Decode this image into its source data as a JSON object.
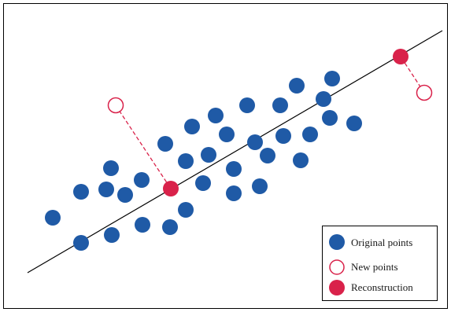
{
  "colors": {
    "original": "#1f5aa6",
    "reconstruction": "#d9224a",
    "line": "#000000",
    "frame": "#000000",
    "legend_border": "#000000"
  },
  "legend": {
    "original_label": "Original points",
    "new_label": "New points",
    "reconstruction_label": "Reconstruction"
  },
  "chart_data": {
    "type": "scatter",
    "original_points": [
      [
        67,
        277
      ],
      [
        103,
        244
      ],
      [
        135,
        241
      ],
      [
        141,
        214
      ],
      [
        159,
        248
      ],
      [
        180,
        229
      ],
      [
        103,
        309
      ],
      [
        142,
        299
      ],
      [
        181,
        286
      ],
      [
        216,
        289
      ],
      [
        236,
        267
      ],
      [
        210,
        183
      ],
      [
        236,
        205
      ],
      [
        244,
        161
      ],
      [
        265,
        197
      ],
      [
        274,
        147
      ],
      [
        288,
        171
      ],
      [
        258,
        233
      ],
      [
        297,
        215
      ],
      [
        297,
        246
      ],
      [
        314,
        134
      ],
      [
        324,
        181
      ],
      [
        330,
        237
      ],
      [
        340,
        198
      ],
      [
        356,
        134
      ],
      [
        360,
        173
      ],
      [
        377,
        109
      ],
      [
        382,
        204
      ],
      [
        394,
        171
      ],
      [
        411,
        126
      ],
      [
        422,
        100
      ],
      [
        419,
        150
      ],
      [
        450,
        157
      ]
    ],
    "new_points": [
      [
        147,
        134
      ],
      [
        539,
        118
      ]
    ],
    "reconstructions": [
      [
        217,
        240
      ],
      [
        509,
        72
      ]
    ],
    "fit_line": [
      [
        35,
        347
      ],
      [
        562,
        39
      ]
    ]
  }
}
